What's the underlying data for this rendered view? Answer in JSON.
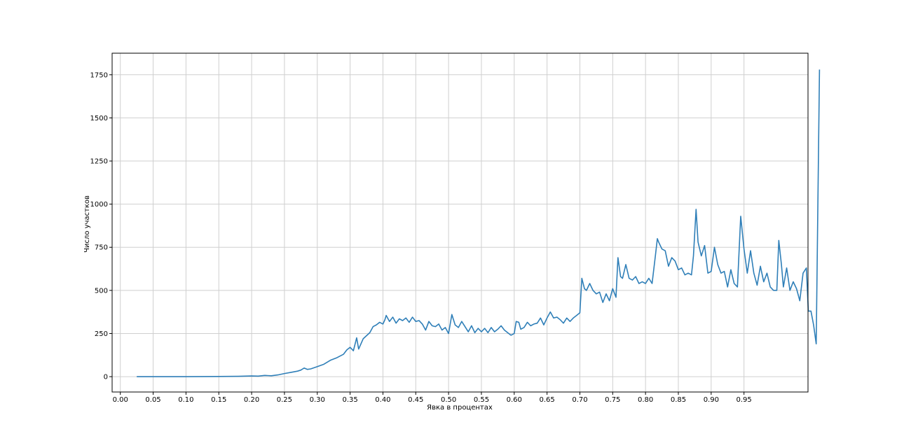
{
  "chart_data": {
    "type": "line",
    "title": "",
    "xlabel": "Явка в процентах",
    "ylabel": "Число участков",
    "xlim": [
      -0.0125,
      1.0475
    ],
    "ylim": [
      -89,
      1875
    ],
    "x_ticks": [
      0.0,
      0.05,
      0.1,
      0.15,
      0.2,
      0.25,
      0.3,
      0.35,
      0.4,
      0.45,
      0.5,
      0.55,
      0.6,
      0.65,
      0.7,
      0.75,
      0.8,
      0.85,
      0.9,
      0.95
    ],
    "x_tick_labels": [
      "0.00",
      "0.05",
      "0.10",
      "0.15",
      "0.20",
      "0.25",
      "0.30",
      "0.35",
      "0.40",
      "0.45",
      "0.50",
      "0.55",
      "0.60",
      "0.65",
      "0.70",
      "0.75",
      "0.80",
      "0.85",
      "0.90",
      "0.95"
    ],
    "y_ticks": [
      0,
      250,
      500,
      750,
      1000,
      1250,
      1500,
      1750
    ],
    "y_tick_labels": [
      "0",
      "250",
      "500",
      "750",
      "1000",
      "1250",
      "1500",
      "1750"
    ],
    "grid": true,
    "legend": false,
    "color": "#2f7fb8",
    "points": [
      [
        0.025,
        0
      ],
      [
        0.05,
        0
      ],
      [
        0.1,
        0
      ],
      [
        0.15,
        1
      ],
      [
        0.18,
        2
      ],
      [
        0.2,
        4
      ],
      [
        0.21,
        3
      ],
      [
        0.22,
        7
      ],
      [
        0.23,
        5
      ],
      [
        0.24,
        10
      ],
      [
        0.25,
        18
      ],
      [
        0.26,
        25
      ],
      [
        0.27,
        32
      ],
      [
        0.275,
        38
      ],
      [
        0.28,
        50
      ],
      [
        0.285,
        42
      ],
      [
        0.29,
        45
      ],
      [
        0.3,
        58
      ],
      [
        0.31,
        72
      ],
      [
        0.32,
        95
      ],
      [
        0.33,
        110
      ],
      [
        0.34,
        130
      ],
      [
        0.345,
        155
      ],
      [
        0.35,
        170
      ],
      [
        0.355,
        150
      ],
      [
        0.36,
        225
      ],
      [
        0.363,
        160
      ],
      [
        0.37,
        220
      ],
      [
        0.38,
        255
      ],
      [
        0.385,
        290
      ],
      [
        0.39,
        300
      ],
      [
        0.395,
        315
      ],
      [
        0.4,
        305
      ],
      [
        0.403,
        330
      ],
      [
        0.405,
        355
      ],
      [
        0.41,
        320
      ],
      [
        0.415,
        345
      ],
      [
        0.42,
        310
      ],
      [
        0.425,
        335
      ],
      [
        0.43,
        325
      ],
      [
        0.435,
        340
      ],
      [
        0.44,
        315
      ],
      [
        0.445,
        345
      ],
      [
        0.45,
        320
      ],
      [
        0.455,
        325
      ],
      [
        0.46,
        305
      ],
      [
        0.465,
        270
      ],
      [
        0.47,
        320
      ],
      [
        0.475,
        295
      ],
      [
        0.48,
        290
      ],
      [
        0.485,
        305
      ],
      [
        0.49,
        270
      ],
      [
        0.495,
        285
      ],
      [
        0.5,
        250
      ],
      [
        0.505,
        360
      ],
      [
        0.51,
        300
      ],
      [
        0.515,
        285
      ],
      [
        0.52,
        320
      ],
      [
        0.525,
        290
      ],
      [
        0.53,
        260
      ],
      [
        0.535,
        295
      ],
      [
        0.54,
        255
      ],
      [
        0.545,
        280
      ],
      [
        0.55,
        260
      ],
      [
        0.555,
        280
      ],
      [
        0.56,
        255
      ],
      [
        0.565,
        285
      ],
      [
        0.57,
        260
      ],
      [
        0.575,
        275
      ],
      [
        0.58,
        295
      ],
      [
        0.585,
        270
      ],
      [
        0.59,
        255
      ],
      [
        0.595,
        240
      ],
      [
        0.6,
        250
      ],
      [
        0.603,
        320
      ],
      [
        0.607,
        315
      ],
      [
        0.61,
        275
      ],
      [
        0.615,
        285
      ],
      [
        0.62,
        315
      ],
      [
        0.625,
        295
      ],
      [
        0.63,
        305
      ],
      [
        0.635,
        310
      ],
      [
        0.64,
        340
      ],
      [
        0.645,
        300
      ],
      [
        0.65,
        340
      ],
      [
        0.655,
        375
      ],
      [
        0.66,
        340
      ],
      [
        0.665,
        345
      ],
      [
        0.67,
        330
      ],
      [
        0.675,
        310
      ],
      [
        0.68,
        340
      ],
      [
        0.685,
        320
      ],
      [
        0.69,
        340
      ],
      [
        0.695,
        355
      ],
      [
        0.7,
        370
      ],
      [
        0.703,
        570
      ],
      [
        0.707,
        510
      ],
      [
        0.71,
        500
      ],
      [
        0.715,
        540
      ],
      [
        0.72,
        500
      ],
      [
        0.725,
        480
      ],
      [
        0.73,
        490
      ],
      [
        0.735,
        430
      ],
      [
        0.74,
        480
      ],
      [
        0.745,
        440
      ],
      [
        0.75,
        510
      ],
      [
        0.755,
        460
      ],
      [
        0.758,
        690
      ],
      [
        0.762,
        580
      ],
      [
        0.765,
        570
      ],
      [
        0.77,
        650
      ],
      [
        0.775,
        570
      ],
      [
        0.78,
        560
      ],
      [
        0.785,
        580
      ],
      [
        0.79,
        540
      ],
      [
        0.795,
        550
      ],
      [
        0.8,
        540
      ],
      [
        0.805,
        570
      ],
      [
        0.81,
        540
      ],
      [
        0.815,
        700
      ],
      [
        0.818,
        800
      ],
      [
        0.82,
        780
      ],
      [
        0.825,
        740
      ],
      [
        0.83,
        730
      ],
      [
        0.835,
        640
      ],
      [
        0.84,
        690
      ],
      [
        0.845,
        670
      ],
      [
        0.85,
        620
      ],
      [
        0.855,
        630
      ],
      [
        0.86,
        590
      ],
      [
        0.865,
        600
      ],
      [
        0.87,
        590
      ],
      [
        0.873,
        700
      ],
      [
        0.877,
        970
      ],
      [
        0.88,
        780
      ],
      [
        0.885,
        700
      ],
      [
        0.89,
        760
      ],
      [
        0.895,
        600
      ],
      [
        0.9,
        610
      ],
      [
        0.905,
        750
      ],
      [
        0.91,
        650
      ],
      [
        0.915,
        600
      ],
      [
        0.92,
        610
      ],
      [
        0.925,
        520
      ],
      [
        0.93,
        620
      ],
      [
        0.935,
        540
      ],
      [
        0.94,
        520
      ],
      [
        0.945,
        930
      ],
      [
        0.95,
        740
      ],
      [
        0.955,
        600
      ],
      [
        0.96,
        730
      ],
      [
        0.965,
        600
      ],
      [
        0.97,
        530
      ],
      [
        0.975,
        640
      ],
      [
        0.98,
        550
      ],
      [
        0.985,
        600
      ],
      [
        0.99,
        520
      ],
      [
        0.995,
        500
      ],
      [
        1.0,
        500
      ],
      [
        1.003,
        790
      ],
      [
        1.007,
        650
      ],
      [
        1.01,
        520
      ],
      [
        1.015,
        630
      ],
      [
        1.02,
        500
      ],
      [
        1.025,
        550
      ],
      [
        1.03,
        510
      ],
      [
        1.035,
        440
      ],
      [
        1.04,
        600
      ],
      [
        1.045,
        630
      ],
      [
        1.048,
        380
      ],
      [
        1.052,
        380
      ],
      [
        1.056,
        300
      ],
      [
        1.06,
        190
      ],
      [
        1.065,
        1780
      ]
    ]
  }
}
